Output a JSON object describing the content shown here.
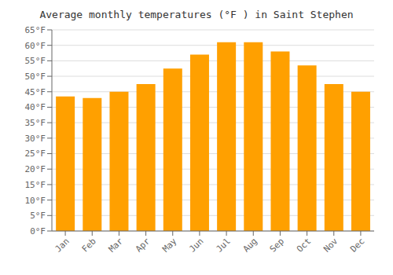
{
  "chart_data": {
    "type": "bar",
    "title": "Average monthly temperatures (°F ) in Saint Stephen",
    "categories": [
      "Jan",
      "Feb",
      "Mar",
      "Apr",
      "May",
      "Jun",
      "Jul",
      "Aug",
      "Sep",
      "Oct",
      "Nov",
      "Dec"
    ],
    "values": [
      43.5,
      43.0,
      45.0,
      47.5,
      52.5,
      57.0,
      61.0,
      61.0,
      58.0,
      53.5,
      47.5,
      45.0
    ],
    "color": "#FFA000",
    "ylim": [
      0,
      65
    ],
    "yticks": [
      {
        "value": 0,
        "label": "0°F"
      },
      {
        "value": 5,
        "label": "5°F"
      },
      {
        "value": 10,
        "label": "10°F"
      },
      {
        "value": 15,
        "label": "15°F"
      },
      {
        "value": 20,
        "label": "20°F"
      },
      {
        "value": 25,
        "label": "25°F"
      },
      {
        "value": 30,
        "label": "30°F"
      },
      {
        "value": 35,
        "label": "35°F"
      },
      {
        "value": 40,
        "label": "40°F"
      },
      {
        "value": 45,
        "label": "45°F"
      },
      {
        "value": 50,
        "label": "50°F"
      },
      {
        "value": 55,
        "label": "55°F"
      },
      {
        "value": 60,
        "label": "60°F"
      },
      {
        "value": 65,
        "label": "65°F"
      }
    ],
    "grid": true
  }
}
